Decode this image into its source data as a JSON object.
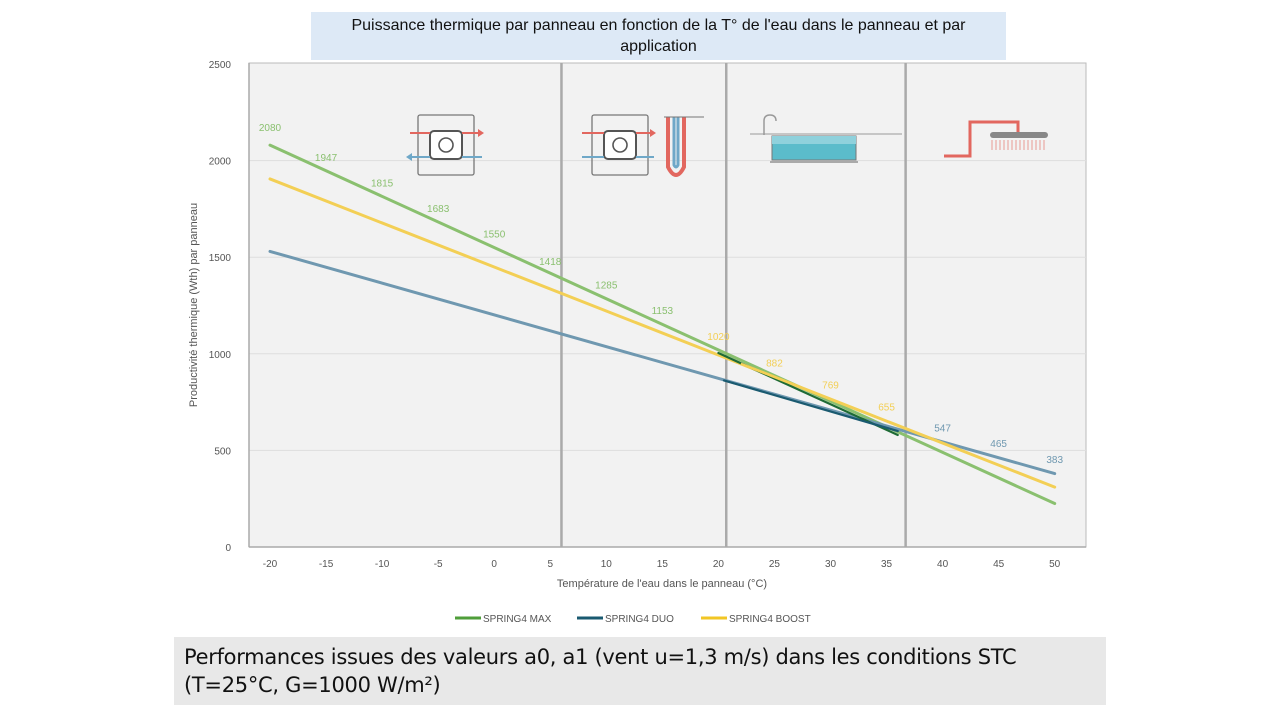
{
  "title": "Puissance thermique par panneau en fonction de la T° de l'eau dans le panneau et par application",
  "footnote": "Performances issues des valeurs a0, a1 (vent u=1,3 m/s) dans les conditions STC (T=25°C, G=1000 W/m²)",
  "chart_data": {
    "type": "line",
    "title": "Puissance thermique par panneau en fonction de la T° de l'eau dans le panneau et par application",
    "xlabel": "Température de l'eau dans le panneau (°C)",
    "ylabel": "Productivité thermique (Wth) par panneau",
    "xlim": [
      -22,
      53
    ],
    "ylim": [
      0,
      2500
    ],
    "x_ticks": [
      -20,
      -15,
      -10,
      -5,
      0,
      5,
      10,
      15,
      20,
      25,
      30,
      35,
      40,
      45,
      50
    ],
    "y_ticks": [
      0,
      500,
      1000,
      1500,
      2000,
      2500
    ],
    "grid": true,
    "legend_position": "bottom",
    "zone_dividers_x": [
      6,
      20.7,
      36.7
    ],
    "series": [
      {
        "name": "SPRING4 MAX",
        "color": "#8ac06f",
        "x": [
          -20,
          50
        ],
        "y": [
          2080,
          225
        ]
      },
      {
        "name": "SPRING4 DUO",
        "color": "#6f98b0",
        "x": [
          -20,
          50
        ],
        "y": [
          1530,
          380
        ]
      },
      {
        "name": "SPRING4 BOOST",
        "color": "#f3cf55",
        "x": [
          -20,
          50
        ],
        "y": [
          1905,
          310
        ]
      }
    ],
    "overlaps": [
      {
        "color": "#1e6b35",
        "x": [
          20,
          36
        ],
        "y": [
          1004,
          580
        ]
      },
      {
        "color": "#1a5a70",
        "x": [
          20.5,
          36
        ],
        "y": [
          862,
          600
        ]
      }
    ],
    "legend_colors": [
      "#4f9e3a",
      "#1a5a70",
      "#f2c624"
    ],
    "data_labels": [
      {
        "x": -20,
        "y": 2080,
        "text": "2080",
        "color": "#8ac06f",
        "dy": -14
      },
      {
        "x": -15,
        "y": 1947,
        "text": "1947",
        "color": "#8ac06f",
        "dy": -10
      },
      {
        "x": -10,
        "y": 1815,
        "text": "1815",
        "color": "#8ac06f",
        "dy": -10
      },
      {
        "x": -5,
        "y": 1683,
        "text": "1683",
        "color": "#8ac06f",
        "dy": -10
      },
      {
        "x": 0,
        "y": 1550,
        "text": "1550",
        "color": "#8ac06f",
        "dy": -10
      },
      {
        "x": 5,
        "y": 1418,
        "text": "1418",
        "color": "#8ac06f",
        "dy": -8
      },
      {
        "x": 10,
        "y": 1285,
        "text": "1285",
        "color": "#8ac06f",
        "dy": -10
      },
      {
        "x": 15,
        "y": 1153,
        "text": "1153",
        "color": "#8ac06f",
        "dy": -10
      },
      {
        "x": 20,
        "y": 1020,
        "text": "1020",
        "color": "#f3cf55",
        "dy": -10
      },
      {
        "x": 25,
        "y": 882,
        "text": "882",
        "color": "#f3cf55",
        "dy": -10
      },
      {
        "x": 30,
        "y": 769,
        "text": "769",
        "color": "#f3cf55",
        "dy": -10
      },
      {
        "x": 35,
        "y": 655,
        "text": "655",
        "color": "#f3cf55",
        "dy": -10
      },
      {
        "x": 40,
        "y": 547,
        "text": "547",
        "color": "#6f98b0",
        "dy": -10
      },
      {
        "x": 45,
        "y": 465,
        "text": "465",
        "color": "#6f98b0",
        "dy": -10
      },
      {
        "x": 50,
        "y": 383,
        "text": "383",
        "color": "#6f98b0",
        "dy": -10
      }
    ],
    "icons": [
      "heat-exchanger-icon",
      "heat-exchanger-tank-icon",
      "swimming-pool-icon",
      "shower-icon"
    ]
  }
}
